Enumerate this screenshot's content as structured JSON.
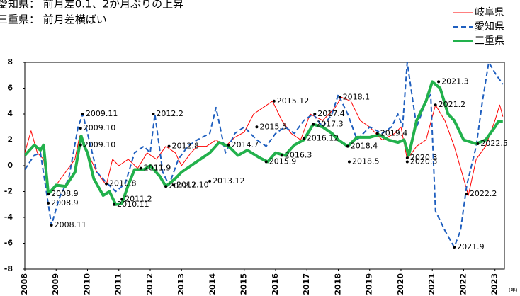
{
  "chart_data": {
    "type": "line",
    "title_lines": [
      "愛知県： 前月差0.1、2か月ぶりの上昇",
      "三重県： 前月差横ばい"
    ],
    "x_unit_label": "(年)",
    "xlim": [
      2008,
      2023.3
    ],
    "xticks": [
      2008,
      2009,
      2010,
      2011,
      2012,
      2013,
      2014,
      2015,
      2016,
      2017,
      2018,
      2019,
      2020,
      2021,
      2022,
      2023
    ],
    "ylim": [
      -8,
      8
    ],
    "yticks": [
      -8,
      -6,
      -4,
      -2,
      0,
      2,
      4,
      6,
      8
    ],
    "legend": "top-right",
    "series": [
      {
        "name": "岐阜県",
        "color": "#ff0000",
        "style": "solid",
        "width": 1,
        "x": [
          2008.0,
          2008.2,
          2008.4,
          2008.6,
          2008.75,
          2009.0,
          2009.3,
          2009.6,
          2009.75,
          2010.0,
          2010.3,
          2010.6,
          2010.8,
          2011.0,
          2011.3,
          2011.6,
          2011.9,
          2012.2,
          2012.5,
          2012.8,
          2013.0,
          2013.3,
          2013.5,
          2013.8,
          2014.1,
          2014.4,
          2014.7,
          2015.0,
          2015.3,
          2015.6,
          2015.9,
          2016.2,
          2016.5,
          2016.8,
          2017.1,
          2017.5,
          2017.9,
          2018.1,
          2018.4,
          2018.7,
          2019.0,
          2019.4,
          2019.8,
          2020.0,
          2020.2,
          2020.5,
          2020.8,
          2021.1,
          2021.4,
          2021.7,
          2022.0,
          2022.15,
          2022.4,
          2022.7,
          2023.0,
          2023.15,
          2023.25
        ],
        "values": [
          1.0,
          2.7,
          1.0,
          0.5,
          -2.2,
          -1.5,
          -0.5,
          0.5,
          2.3,
          1.0,
          -0.5,
          -1.5,
          0.5,
          0.0,
          0.5,
          -0.2,
          1.0,
          0.5,
          1.5,
          1.0,
          0.0,
          1.0,
          1.5,
          1.5,
          2.0,
          1.5,
          2.2,
          2.6,
          4.0,
          4.5,
          5.0,
          3.5,
          2.5,
          2.0,
          4.0,
          3.5,
          4.5,
          5.3,
          5.0,
          3.5,
          3.0,
          2.0,
          2.5,
          3.0,
          0.5,
          1.5,
          2.0,
          4.7,
          3.5,
          1.5,
          -1.0,
          -2.3,
          0.5,
          1.5,
          3.5,
          4.7,
          3.8
        ]
      },
      {
        "name": "愛知県",
        "color": "#1f5fbf",
        "style": "dashed",
        "width": 2,
        "x": [
          2008.0,
          2008.3,
          2008.5,
          2008.75,
          2008.85,
          2009.1,
          2009.4,
          2009.7,
          2009.85,
          2010.0,
          2010.3,
          2010.6,
          2010.9,
          2011.2,
          2011.5,
          2011.8,
          2012.0,
          2012.15,
          2012.4,
          2012.6,
          2012.9,
          2013.2,
          2013.5,
          2013.9,
          2014.1,
          2014.4,
          2014.7,
          2015.0,
          2015.4,
          2015.7,
          2016.0,
          2016.3,
          2016.6,
          2016.9,
          2017.2,
          2017.5,
          2017.8,
          2018.0,
          2018.3,
          2018.6,
          2019.0,
          2019.4,
          2019.7,
          2019.9,
          2020.05,
          2020.2,
          2020.5,
          2020.8,
          2020.95,
          2021.1,
          2021.4,
          2021.7,
          2021.9,
          2022.1,
          2022.4,
          2022.6,
          2022.8,
          2023.05,
          2023.25
        ],
        "values": [
          -0.3,
          0.8,
          1.0,
          -3.0,
          -4.6,
          -2.5,
          -1.0,
          3.0,
          4.0,
          2.5,
          -0.5,
          -1.3,
          -2.0,
          -1.4,
          1.0,
          1.5,
          1.0,
          4.0,
          -0.5,
          -1.5,
          0.5,
          1.5,
          2.0,
          2.5,
          4.5,
          1.0,
          2.5,
          3.0,
          2.0,
          1.5,
          2.5,
          3.0,
          2.5,
          3.5,
          4.0,
          3.0,
          4.0,
          5.5,
          4.0,
          2.0,
          3.0,
          2.5,
          3.0,
          4.0,
          3.0,
          8.0,
          3.0,
          5.0,
          5.5,
          -3.5,
          -5.0,
          -6.3,
          -5.0,
          -1.5,
          1.5,
          5.0,
          8.0,
          7.0,
          6.3
        ]
      },
      {
        "name": "三重県",
        "color": "#22b14c",
        "style": "solid",
        "width": 4,
        "x": [
          2008.0,
          2008.3,
          2008.5,
          2008.6,
          2008.75,
          2009.0,
          2009.3,
          2009.6,
          2009.8,
          2009.9,
          2010.0,
          2010.2,
          2010.5,
          2010.7,
          2010.9,
          2011.1,
          2011.3,
          2011.5,
          2011.8,
          2012.0,
          2012.3,
          2012.5,
          2012.8,
          2013.0,
          2013.3,
          2013.6,
          2013.9,
          2014.2,
          2014.5,
          2014.8,
          2015.1,
          2015.5,
          2015.75,
          2016.0,
          2016.3,
          2016.6,
          2016.9,
          2017.2,
          2017.5,
          2017.8,
          2018.0,
          2018.3,
          2018.6,
          2019.0,
          2019.3,
          2019.6,
          2019.9,
          2020.1,
          2020.25,
          2020.5,
          2020.8,
          2021.0,
          2021.25,
          2021.5,
          2021.7,
          2022.0,
          2022.4,
          2022.7,
          2023.0,
          2023.1,
          2023.25
        ],
        "values": [
          0.8,
          1.6,
          1.2,
          1.6,
          -2.2,
          -1.5,
          -1.6,
          -0.5,
          2.3,
          1.5,
          1.0,
          -1.0,
          -2.3,
          -2.0,
          -3.0,
          -2.9,
          -1.5,
          -0.3,
          -0.3,
          0.0,
          -0.8,
          -1.6,
          -1.0,
          -0.5,
          0.0,
          0.5,
          1.0,
          1.8,
          1.5,
          0.8,
          1.2,
          0.6,
          0.3,
          1.0,
          0.8,
          1.6,
          2.0,
          3.2,
          3.0,
          2.5,
          2.0,
          1.5,
          2.2,
          2.2,
          2.4,
          2.0,
          1.8,
          2.0,
          0.8,
          3.5,
          5.0,
          6.5,
          6.0,
          4.0,
          3.5,
          2.0,
          1.7,
          2.0,
          3.0,
          3.4,
          3.4
        ]
      }
    ],
    "annotations": [
      {
        "label": "2008.9",
        "x": 2008.75,
        "y": -2.2
      },
      {
        "label": "2008.9",
        "x": 2008.75,
        "y": -2.9
      },
      {
        "label": "2008.11",
        "x": 2008.85,
        "y": -4.6
      },
      {
        "label": "2009.11",
        "x": 2009.85,
        "y": 4.0
      },
      {
        "label": "2009.10",
        "x": 2009.78,
        "y": 2.9
      },
      {
        "label": "2009.10",
        "x": 2009.78,
        "y": 1.6
      },
      {
        "label": "2010.8",
        "x": 2010.6,
        "y": -1.4
      },
      {
        "label": "2010.11",
        "x": 2010.85,
        "y": -3.0
      },
      {
        "label": "2011.2",
        "x": 2011.1,
        "y": -2.6
      },
      {
        "label": "2011.9",
        "x": 2011.7,
        "y": -0.2
      },
      {
        "label": "2012.2",
        "x": 2012.1,
        "y": 4.0
      },
      {
        "label": "2012.7",
        "x": 2012.5,
        "y": -1.6
      },
      {
        "label": "2012.8",
        "x": 2012.6,
        "y": 1.5
      },
      {
        "label": "2012.10",
        "x": 2012.75,
        "y": -1.5
      },
      {
        "label": "2013.12",
        "x": 2013.9,
        "y": -1.2
      },
      {
        "label": "2014.7",
        "x": 2014.5,
        "y": 1.6
      },
      {
        "label": "2015.5",
        "x": 2015.4,
        "y": 3.0
      },
      {
        "label": "2015.9",
        "x": 2015.7,
        "y": 0.3
      },
      {
        "label": "2015.12",
        "x": 2015.95,
        "y": 5.0
      },
      {
        "label": "2016.3",
        "x": 2016.2,
        "y": 0.8
      },
      {
        "label": "2016.12",
        "x": 2016.9,
        "y": 2.1
      },
      {
        "label": "2017.4",
        "x": 2017.25,
        "y": 4.0
      },
      {
        "label": "2017.3",
        "x": 2017.2,
        "y": 3.2
      },
      {
        "label": "2018.1",
        "x": 2018.05,
        "y": 5.3
      },
      {
        "label": "2018.4",
        "x": 2018.3,
        "y": 1.5
      },
      {
        "label": "2018.5",
        "x": 2018.35,
        "y": 0.3
      },
      {
        "label": "2019.4",
        "x": 2019.25,
        "y": 2.5
      },
      {
        "label": "2020.3",
        "x": 2020.2,
        "y": 0.6
      },
      {
        "label": "2020.3",
        "x": 2020.2,
        "y": 0.3
      },
      {
        "label": "2021.3",
        "x": 2021.2,
        "y": 6.5
      },
      {
        "label": "2021.2",
        "x": 2021.1,
        "y": 4.7
      },
      {
        "label": "2021.9",
        "x": 2021.7,
        "y": -6.3
      },
      {
        "label": "2022.2",
        "x": 2022.1,
        "y": -2.2
      },
      {
        "label": "2022.5",
        "x": 2022.45,
        "y": 1.7
      }
    ]
  }
}
